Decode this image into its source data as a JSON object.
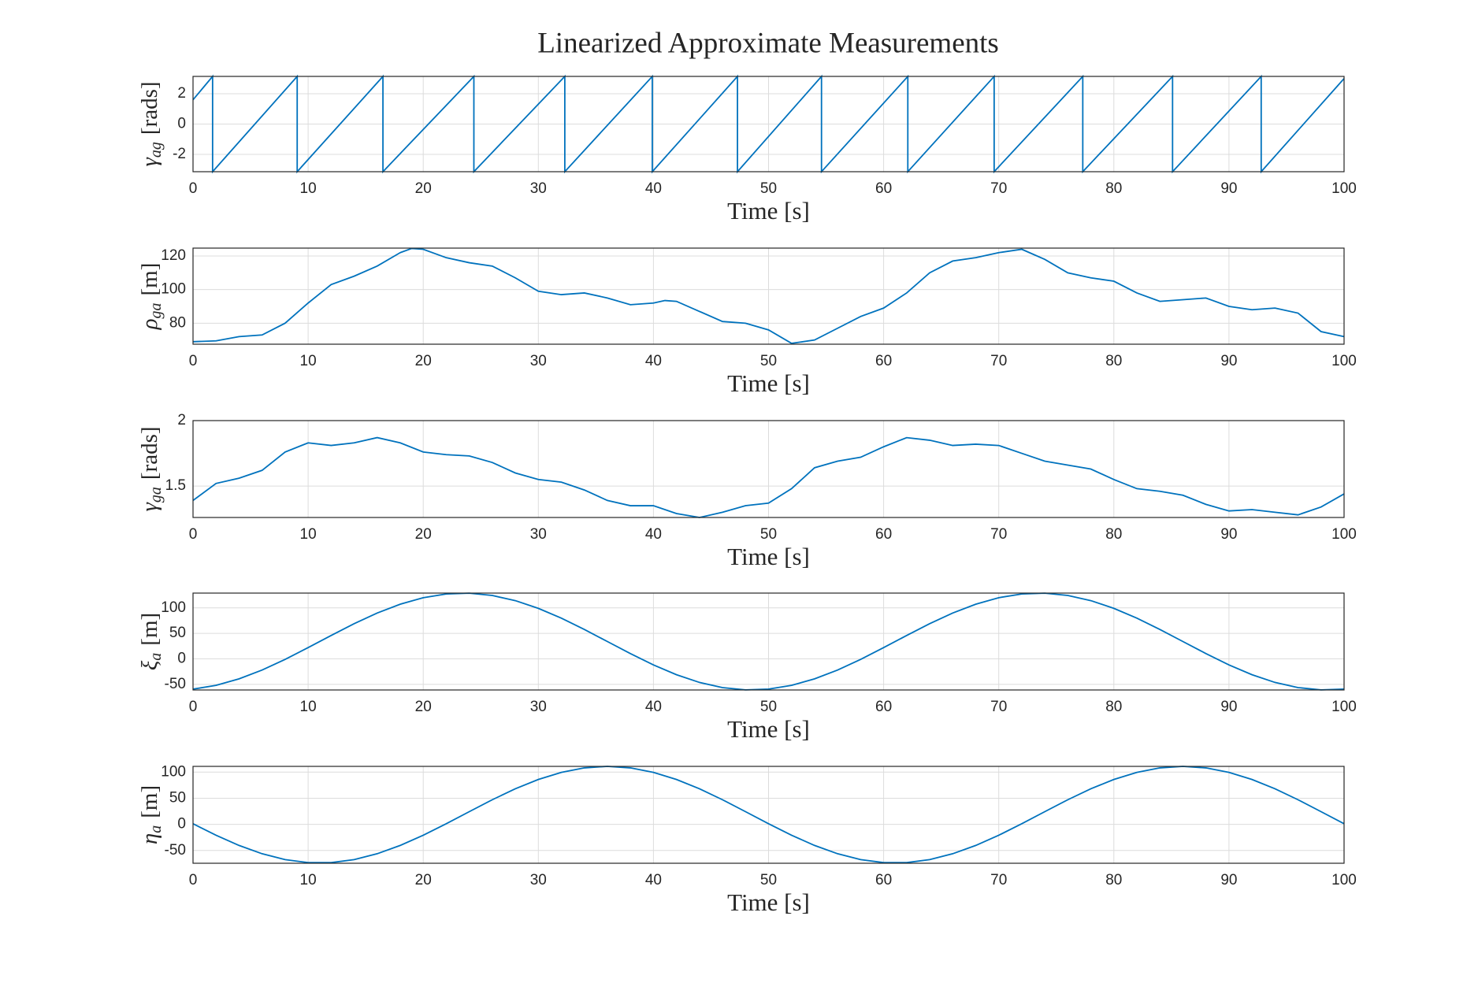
{
  "title": "Linearized Approximate Measurements",
  "chart_data": [
    {
      "type": "line",
      "xlabel": "Time [s]",
      "ylabel": {
        "symbol": "γ",
        "subscript": "ag",
        "unit": "[rads]"
      },
      "xlim": [
        0,
        100
      ],
      "xticks": [
        0,
        10,
        20,
        30,
        40,
        50,
        60,
        70,
        80,
        90,
        100
      ],
      "ylim": [
        -3.1416,
        3.1416
      ],
      "yticks": [
        -2,
        0,
        2
      ],
      "grid": true,
      "color": "#0072BD",
      "x": [
        0,
        1.7,
        1.7,
        9.05,
        9.05,
        16.5,
        16.5,
        24.4,
        24.4,
        32.3,
        32.3,
        39.9,
        39.9,
        47.3,
        47.3,
        54.6,
        54.6,
        62.1,
        62.1,
        69.6,
        69.6,
        77.3,
        77.3,
        85.1,
        85.1,
        92.8,
        92.8,
        100
      ],
      "values": [
        1.6,
        3.14,
        -3.14,
        3.14,
        -3.14,
        3.14,
        -3.14,
        3.14,
        -3.14,
        3.14,
        -3.14,
        3.14,
        -3.14,
        3.14,
        -3.14,
        3.14,
        -3.14,
        3.14,
        -3.14,
        3.14,
        -3.14,
        3.14,
        -3.14,
        3.14,
        -3.14,
        3.14,
        -3.14,
        3.0
      ]
    },
    {
      "type": "line",
      "xlabel": "Time [s]",
      "ylabel": {
        "symbol": "ρ",
        "subscript": "ga",
        "unit": "[m]"
      },
      "xlim": [
        0,
        100
      ],
      "xticks": [
        0,
        10,
        20,
        30,
        40,
        50,
        60,
        70,
        80,
        90,
        100
      ],
      "ylim": [
        67.5,
        124.7
      ],
      "yticks": [
        80,
        100,
        120
      ],
      "grid": true,
      "color": "#0072BD",
      "x": [
        0,
        2,
        4,
        6,
        8,
        10,
        12,
        14,
        16,
        18,
        19,
        20,
        22,
        24,
        26,
        28,
        30,
        32,
        34,
        36,
        38,
        40,
        41,
        42,
        44,
        46,
        48,
        50,
        52,
        54,
        56,
        58,
        60,
        62,
        64,
        66,
        68,
        70,
        72,
        74,
        76,
        78,
        80,
        82,
        84,
        86,
        88,
        90,
        92,
        94,
        96,
        98,
        100
      ],
      "values": [
        69,
        69.5,
        72,
        73,
        80,
        92,
        103,
        108,
        114,
        122,
        124.5,
        124,
        119,
        116,
        114,
        107,
        99,
        97,
        98,
        95,
        91,
        92,
        93.5,
        93,
        87,
        81,
        80,
        76,
        68,
        70,
        77,
        84,
        89,
        98,
        110,
        117,
        119,
        122,
        124,
        118,
        110,
        107,
        105,
        98,
        93,
        94,
        95,
        90,
        88,
        89,
        86,
        75,
        72
      ]
    },
    {
      "type": "line",
      "xlabel": "Time [s]",
      "ylabel": {
        "symbol": "γ",
        "subscript": "ga",
        "unit": "[rads]"
      },
      "xlim": [
        0,
        100
      ],
      "xticks": [
        0,
        10,
        20,
        30,
        40,
        50,
        60,
        70,
        80,
        90,
        100
      ],
      "ylim": [
        1.26,
        2
      ],
      "yticks": [
        1.5,
        2
      ],
      "grid": true,
      "color": "#0072BD",
      "x": [
        0,
        2,
        4,
        6,
        8,
        10,
        12,
        14,
        16,
        18,
        20,
        22,
        24,
        26,
        28,
        30,
        32,
        34,
        36,
        38,
        40,
        42,
        44,
        46,
        48,
        50,
        52,
        54,
        56,
        58,
        60,
        62,
        64,
        66,
        68,
        70,
        72,
        74,
        76,
        78,
        80,
        82,
        84,
        86,
        88,
        90,
        92,
        94,
        96,
        98,
        100
      ],
      "values": [
        1.39,
        1.52,
        1.56,
        1.62,
        1.76,
        1.83,
        1.81,
        1.83,
        1.87,
        1.83,
        1.76,
        1.74,
        1.73,
        1.68,
        1.6,
        1.55,
        1.53,
        1.47,
        1.39,
        1.35,
        1.35,
        1.29,
        1.26,
        1.3,
        1.35,
        1.37,
        1.48,
        1.64,
        1.69,
        1.72,
        1.8,
        1.87,
        1.85,
        1.81,
        1.82,
        1.81,
        1.75,
        1.69,
        1.66,
        1.63,
        1.55,
        1.48,
        1.46,
        1.43,
        1.36,
        1.31,
        1.32,
        1.3,
        1.28,
        1.34,
        1.44
      ]
    },
    {
      "type": "line",
      "xlabel": "Time [s]",
      "ylabel": {
        "symbol": "ξ",
        "subscript": "a",
        "unit": "[m]"
      },
      "xlim": [
        0,
        100
      ],
      "xticks": [
        0,
        10,
        20,
        30,
        40,
        50,
        60,
        70,
        80,
        90,
        100
      ],
      "ylim": [
        -61,
        129
      ],
      "yticks": [
        -50,
        0,
        50,
        100
      ],
      "grid": true,
      "color": "#0072BD",
      "x": [
        0,
        2,
        4,
        6,
        8,
        10,
        12,
        14,
        16,
        18,
        20,
        22,
        24,
        26,
        28,
        30,
        32,
        34,
        36,
        38,
        40,
        42,
        44,
        46,
        48,
        50,
        52,
        54,
        56,
        58,
        60,
        62,
        64,
        66,
        68,
        70,
        72,
        74,
        76,
        78,
        80,
        82,
        84,
        86,
        88,
        90,
        92,
        94,
        96,
        98,
        100
      ],
      "values": [
        -59.3,
        -52,
        -39.2,
        -21.9,
        -1,
        22.1,
        45.9,
        69,
        89.9,
        107.2,
        120,
        127.3,
        128.8,
        124.3,
        114.2,
        99.1,
        79.8,
        57.6,
        34,
        10.4,
        -11.8,
        -31.1,
        -46.2,
        -56.3,
        -60.8,
        -59.3,
        -52,
        -39.2,
        -21.9,
        -1,
        22.1,
        45.9,
        69,
        89.9,
        107.2,
        120,
        127.3,
        128.8,
        124.3,
        114.2,
        99.1,
        79.8,
        57.6,
        34,
        10.4,
        -11.8,
        -31.1,
        -46.2,
        -56.3,
        -60.8,
        -59.3
      ]
    },
    {
      "type": "line",
      "xlabel": "Time [s]",
      "ylabel": {
        "symbol": "η",
        "subscript": "a",
        "unit": "[m]"
      },
      "xlim": [
        0,
        100
      ],
      "xticks": [
        0,
        10,
        20,
        30,
        40,
        50,
        60,
        70,
        80,
        90,
        100
      ],
      "ylim": [
        -74.5,
        111
      ],
      "yticks": [
        -50,
        0,
        50,
        100
      ],
      "grid": true,
      "color": "#0072BD",
      "x": [
        0,
        2,
        4,
        6,
        8,
        10,
        12,
        14,
        16,
        18,
        20,
        22,
        24,
        26,
        28,
        30,
        32,
        34,
        36,
        38,
        40,
        42,
        44,
        46,
        48,
        50,
        52,
        54,
        56,
        58,
        60,
        62,
        64,
        66,
        68,
        70,
        72,
        74,
        76,
        78,
        80,
        82,
        84,
        86,
        88,
        90,
        92,
        94,
        96,
        98,
        100
      ],
      "values": [
        1.2,
        -20.9,
        -40.4,
        -56.3,
        -67.5,
        -73.3,
        -73.3,
        -67.5,
        -56.3,
        -40.4,
        -20.9,
        1.2,
        24.3,
        47.1,
        68.1,
        85.9,
        99.5,
        108.1,
        111,
        108.1,
        99.5,
        85.9,
        68.1,
        47.1,
        24.3,
        1.2,
        -20.9,
        -40.4,
        -56.3,
        -67.5,
        -73.3,
        -73.3,
        -67.5,
        -56.3,
        -40.4,
        -20.9,
        1.2,
        24.3,
        47.1,
        68.1,
        85.9,
        99.5,
        108.1,
        111,
        108.1,
        99.5,
        85.9,
        68.1,
        47.1,
        24.3,
        1.2
      ]
    }
  ]
}
